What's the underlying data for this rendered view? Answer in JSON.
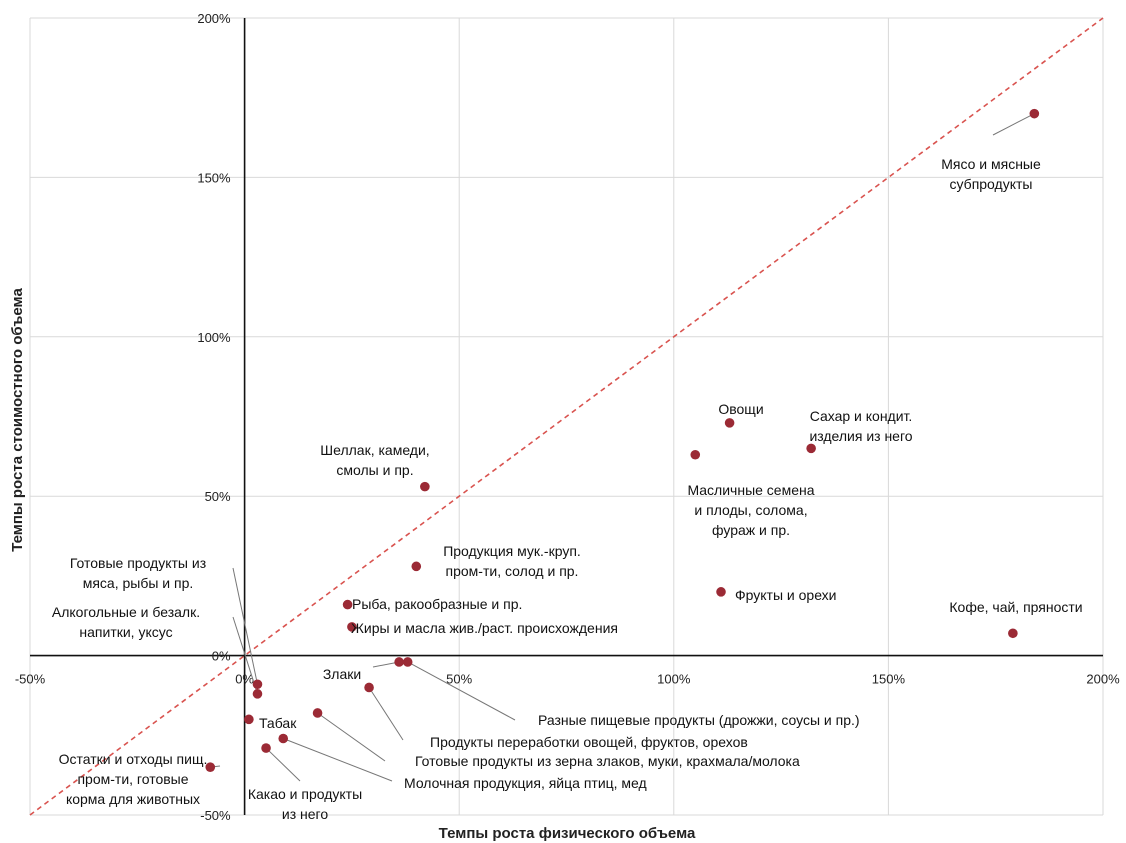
{
  "chart_data": {
    "type": "scatter",
    "xlabel": "Темпы роста физического объема",
    "ylabel": "Темпы роста стоимостного объема",
    "xlim": [
      -50,
      200
    ],
    "ylim": [
      -50,
      200
    ],
    "x_unit": "%",
    "y_unit": "%",
    "xticks": [
      "-50%",
      "0%",
      "50%",
      "100%",
      "150%",
      "200%"
    ],
    "yticks": [
      "-50%",
      "0%",
      "50%",
      "100%",
      "150%",
      "200%"
    ],
    "grid": true,
    "diagonal_reference_line": true,
    "marker_color": "#9b2a35",
    "diagonal_color": "#d9534f",
    "points": [
      {
        "name": "Мясо и мясные субпродукты",
        "lines": [
          "Мясо и мясные",
          "субпродукты"
        ],
        "x": 184,
        "y": 170
      },
      {
        "name": "Овощи",
        "lines": [
          "Овощи"
        ],
        "x": 113,
        "y": 73
      },
      {
        "name": "Сахар и кондит. изделия из него",
        "lines": [
          "Сахар и кондит.",
          "изделия из него"
        ],
        "x": 132,
        "y": 65
      },
      {
        "name": "Масличные семена и плоды, солома, фураж и пр.",
        "lines": [
          "Масличные семена",
          "и плоды, солома,",
          "фураж и пр."
        ],
        "x": 105,
        "y": 63
      },
      {
        "name": "Фрукты и орехи",
        "lines": [
          "Фрукты и орехи"
        ],
        "x": 111,
        "y": 20
      },
      {
        "name": "Кофе, чай, пряности",
        "lines": [
          "Кофе, чай, пряности"
        ],
        "x": 179,
        "y": 7
      },
      {
        "name": "Шеллак, камеди, смолы и пр.",
        "lines": [
          "Шеллак, камеди,",
          "смолы и пр."
        ],
        "x": 42,
        "y": 53
      },
      {
        "name": "Продукция мук.-круп. пром-ти, солод и пр.",
        "lines": [
          "Продукция мук.-круп.",
          "пром-ти, солод и пр."
        ],
        "x": 40,
        "y": 28
      },
      {
        "name": "Рыба, ракообразные и пр.",
        "lines": [
          "Рыба, ракообразные и пр."
        ],
        "x": 24,
        "y": 16
      },
      {
        "name": "Жиры и масла жив./раст. происхождения",
        "lines": [
          "Жиры и масла жив./раст. происхождения"
        ],
        "x": 25,
        "y": 9
      },
      {
        "name": "Готовые продукты из мяса, рыбы и пр.",
        "lines": [
          "Готовые продукты из",
          "мяса, рыбы и пр."
        ],
        "x": 3,
        "y": -9
      },
      {
        "name": "Алкогольные и безалк. напитки, уксус",
        "lines": [
          "Алкогольные и безалк.",
          "напитки, уксус"
        ],
        "x": 3,
        "y": -12
      },
      {
        "name": "Злаки",
        "lines": [
          "Злаки"
        ],
        "x": 36,
        "y": -2
      },
      {
        "name": "Разные пищевые продукты (дрожжи, соусы и пр.)",
        "lines": [
          "Разные пищевые продукты (дрожжи, соусы и пр.)"
        ],
        "x": 38,
        "y": -2
      },
      {
        "name": "Продукты переработки овощей, фруктов, орехов",
        "lines": [
          "Продукты переработки овощей, фруктов, орехов"
        ],
        "x": 29,
        "y": -10
      },
      {
        "name": "Табак",
        "lines": [
          "Табак"
        ],
        "x": 1,
        "y": -20
      },
      {
        "name": "Готовые продукты из зерна злаков, муки, крахмала/молока",
        "lines": [
          "Готовые продукты из зерна злаков, муки, крахмала/молока"
        ],
        "x": 17,
        "y": -18
      },
      {
        "name": "Молочная продукция, яйца птиц, мед",
        "lines": [
          "Молочная продукция, яйца птиц, мед"
        ],
        "x": 9,
        "y": -26
      },
      {
        "name": "Какао и продукты из него",
        "lines": [
          "Какао и продукты",
          "из него"
        ],
        "x": 5,
        "y": -29
      },
      {
        "name": "Остатки и отходы пищ. пром-ти, готовые корма для животных",
        "lines": [
          "Остатки и отходы пищ.",
          "пром-ти, готовые",
          "корма для животных"
        ],
        "x": -8,
        "y": -35
      }
    ]
  }
}
